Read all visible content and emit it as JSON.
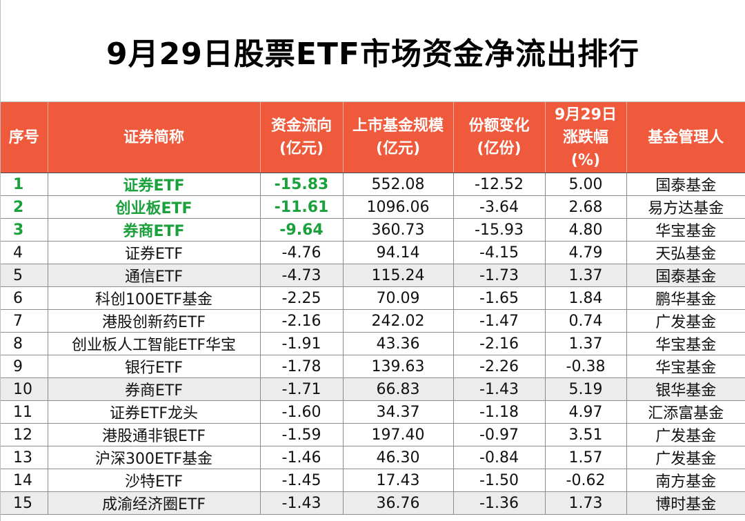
{
  "title": "9月29日股票ETF市场资金净流出排行",
  "colors": {
    "header_bg": "#f05a3c",
    "highlight_text": "#1aa13c",
    "shade_row": "#ececec"
  },
  "headers": [
    {
      "lines": [
        "序号"
      ]
    },
    {
      "lines": [
        "证券简称"
      ]
    },
    {
      "lines": [
        "资金流向",
        "(亿元)"
      ]
    },
    {
      "lines": [
        "上市基金规模",
        "(亿元)"
      ]
    },
    {
      "lines": [
        "份额变化",
        "(亿份)"
      ]
    },
    {
      "lines": [
        "9月29日",
        "涨跌幅",
        "(%)"
      ]
    },
    {
      "lines": [
        "基金管理人"
      ]
    }
  ],
  "rows": [
    {
      "rank": "1",
      "name": "证券ETF",
      "flow": "-15.83",
      "scale": "552.08",
      "share": "-12.52",
      "chg": "5.00",
      "manager": "国泰基金"
    },
    {
      "rank": "2",
      "name": "创业板ETF",
      "flow": "-11.61",
      "scale": "1096.06",
      "share": "-3.64",
      "chg": "2.68",
      "manager": "易方达基金"
    },
    {
      "rank": "3",
      "name": "券商ETF",
      "flow": "-9.64",
      "scale": "360.73",
      "share": "-15.93",
      "chg": "4.80",
      "manager": "华宝基金"
    },
    {
      "rank": "4",
      "name": "证券ETF",
      "flow": "-4.76",
      "scale": "94.14",
      "share": "-4.15",
      "chg": "4.79",
      "manager": "天弘基金"
    },
    {
      "rank": "5",
      "name": "通信ETF",
      "flow": "-4.73",
      "scale": "115.24",
      "share": "-1.73",
      "chg": "1.37",
      "manager": "国泰基金"
    },
    {
      "rank": "6",
      "name": "科创100ETF基金",
      "flow": "-2.25",
      "scale": "70.09",
      "share": "-1.65",
      "chg": "1.84",
      "manager": "鹏华基金"
    },
    {
      "rank": "7",
      "name": "港股创新药ETF",
      "flow": "-2.16",
      "scale": "242.02",
      "share": "-1.47",
      "chg": "0.74",
      "manager": "广发基金"
    },
    {
      "rank": "8",
      "name": "创业板人工智能ETF华宝",
      "flow": "-1.91",
      "scale": "43.36",
      "share": "-2.16",
      "chg": "1.37",
      "manager": "华宝基金"
    },
    {
      "rank": "9",
      "name": "银行ETF",
      "flow": "-1.78",
      "scale": "139.63",
      "share": "-2.26",
      "chg": "-0.38",
      "manager": "华宝基金"
    },
    {
      "rank": "10",
      "name": "券商ETF",
      "flow": "-1.71",
      "scale": "66.83",
      "share": "-1.43",
      "chg": "5.19",
      "manager": "银华基金"
    },
    {
      "rank": "11",
      "name": "证券ETF龙头",
      "flow": "-1.60",
      "scale": "34.37",
      "share": "-1.18",
      "chg": "4.97",
      "manager": "汇添富基金"
    },
    {
      "rank": "12",
      "name": "港股通非银ETF",
      "flow": "-1.59",
      "scale": "197.40",
      "share": "-0.97",
      "chg": "3.51",
      "manager": "广发基金"
    },
    {
      "rank": "13",
      "name": "沪深300ETF基金",
      "flow": "-1.46",
      "scale": "46.30",
      "share": "-0.84",
      "chg": "1.57",
      "manager": "广发基金"
    },
    {
      "rank": "14",
      "name": "沙特ETF",
      "flow": "-1.45",
      "scale": "17.43",
      "share": "-1.50",
      "chg": "-0.62",
      "manager": "南方基金"
    },
    {
      "rank": "15",
      "name": "成渝经济圈ETF",
      "flow": "-1.43",
      "scale": "36.76",
      "share": "-1.36",
      "chg": "1.73",
      "manager": "博时基金"
    }
  ]
}
